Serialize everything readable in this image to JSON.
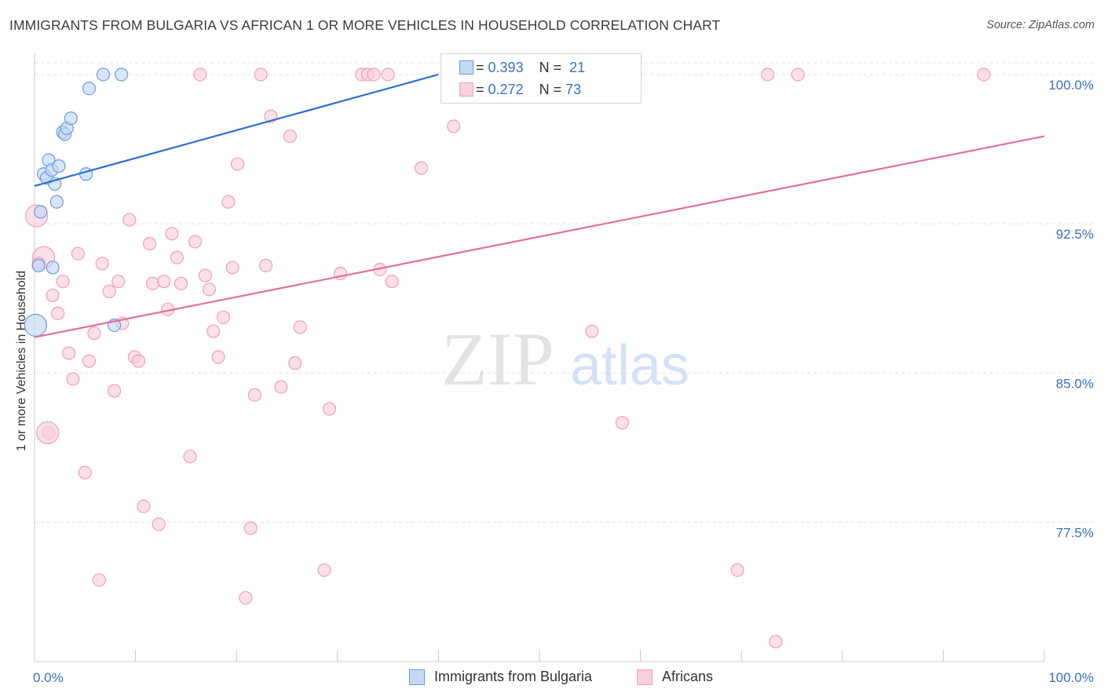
{
  "title": "IMMIGRANTS FROM BULGARIA VS AFRICAN 1 OR MORE VEHICLES IN HOUSEHOLD CORRELATION CHART",
  "source": "Source: ZipAtlas.com",
  "watermark": {
    "zip": "ZIP",
    "atlas": "atlas"
  },
  "legend_stats": [
    {
      "r_label": "R =",
      "r_value": "0.393",
      "n_label": "N =",
      "n_value": "21"
    },
    {
      "r_label": "R =",
      "r_value": "0.272",
      "n_label": "N =",
      "n_value": "73"
    }
  ],
  "chart_data": {
    "type": "scatter",
    "title": "IMMIGRANTS FROM BULGARIA VS AFRICAN 1 OR MORE VEHICLES IN HOUSEHOLD CORRELATION CHART",
    "xlabel": "",
    "ylabel": "1 or more Vehicles in Household",
    "xlim": [
      0,
      100
    ],
    "ylim": [
      70.5,
      101.3
    ],
    "x_tick_labels": [
      "0.0%",
      "100.0%"
    ],
    "y_ticks": [
      77.5,
      85.0,
      92.5,
      100.0
    ],
    "y_tick_labels": [
      "77.5%",
      "85.0%",
      "92.5%",
      "100.0%"
    ],
    "grid": true,
    "legend_position": "bottom",
    "colors": {
      "bulgaria": "#6b9be0",
      "africans": "#f0a0ba",
      "bulgaria_line": "#2e6fcf",
      "africans_line": "#e0709a",
      "axis_tick_text": "#3a6fc4"
    },
    "series": [
      {
        "name": "Immigrants from Bulgaria",
        "points": [
          [
            0.1,
            87.4
          ],
          [
            0.4,
            90.4
          ],
          [
            0.6,
            93.1
          ],
          [
            0.9,
            95.0
          ],
          [
            1.2,
            94.8
          ],
          [
            1.4,
            95.7
          ],
          [
            1.7,
            95.2
          ],
          [
            1.8,
            90.3
          ],
          [
            2.0,
            94.5
          ],
          [
            2.2,
            93.6
          ],
          [
            2.4,
            95.4
          ],
          [
            2.8,
            97.1
          ],
          [
            3.0,
            97.0
          ],
          [
            3.2,
            97.3
          ],
          [
            3.6,
            97.8
          ],
          [
            5.1,
            95.0
          ],
          [
            5.4,
            99.3
          ],
          [
            7.9,
            87.4
          ],
          [
            6.8,
            100.0
          ],
          [
            8.6,
            100.0
          ],
          [
            47.2,
            100.0
          ]
        ],
        "big_points": [
          [
            0.1,
            87.4
          ]
        ],
        "trend": [
          [
            0,
            94.4
          ],
          [
            40,
            100.0
          ]
        ]
      },
      {
        "name": "Africans",
        "points": [
          [
            0.2,
            92.9
          ],
          [
            0.9,
            90.8
          ],
          [
            1.4,
            82.0
          ],
          [
            1.8,
            88.9
          ],
          [
            2.3,
            88.0
          ],
          [
            2.8,
            89.6
          ],
          [
            3.4,
            86.0
          ],
          [
            3.8,
            84.7
          ],
          [
            4.3,
            91.0
          ],
          [
            5.0,
            80.0
          ],
          [
            5.4,
            85.6
          ],
          [
            5.9,
            87.0
          ],
          [
            6.4,
            74.6
          ],
          [
            6.7,
            90.5
          ],
          [
            7.4,
            89.1
          ],
          [
            7.9,
            84.1
          ],
          [
            8.3,
            89.6
          ],
          [
            8.7,
            87.5
          ],
          [
            9.4,
            92.7
          ],
          [
            9.9,
            85.8
          ],
          [
            10.3,
            85.6
          ],
          [
            10.8,
            78.3
          ],
          [
            11.4,
            91.5
          ],
          [
            11.7,
            89.5
          ],
          [
            12.3,
            77.4
          ],
          [
            12.8,
            89.6
          ],
          [
            13.2,
            88.2
          ],
          [
            13.6,
            92.0
          ],
          [
            14.1,
            90.8
          ],
          [
            14.5,
            89.5
          ],
          [
            15.4,
            80.8
          ],
          [
            15.9,
            91.6
          ],
          [
            16.4,
            100.0
          ],
          [
            16.9,
            89.9
          ],
          [
            17.3,
            89.2
          ],
          [
            17.7,
            87.1
          ],
          [
            18.2,
            85.8
          ],
          [
            18.7,
            87.8
          ],
          [
            19.2,
            93.6
          ],
          [
            19.6,
            90.3
          ],
          [
            20.1,
            95.5
          ],
          [
            20.9,
            73.7
          ],
          [
            21.4,
            77.2
          ],
          [
            21.8,
            83.9
          ],
          [
            22.4,
            100.0
          ],
          [
            22.9,
            90.4
          ],
          [
            23.4,
            97.9
          ],
          [
            24.4,
            84.3
          ],
          [
            25.3,
            96.9
          ],
          [
            25.8,
            85.5
          ],
          [
            26.3,
            87.3
          ],
          [
            28.7,
            75.1
          ],
          [
            29.2,
            83.2
          ],
          [
            30.3,
            90.0
          ],
          [
            32.4,
            100.0
          ],
          [
            33.0,
            100.0
          ],
          [
            33.6,
            100.0
          ],
          [
            34.2,
            90.2
          ],
          [
            35.0,
            100.0
          ],
          [
            35.4,
            89.6
          ],
          [
            38.3,
            95.3
          ],
          [
            41.5,
            97.4
          ],
          [
            48.2,
            100.0
          ],
          [
            55.2,
            87.1
          ],
          [
            58.7,
            100.0
          ],
          [
            58.2,
            82.5
          ],
          [
            69.6,
            75.1
          ],
          [
            72.6,
            100.0
          ],
          [
            73.4,
            71.5
          ],
          [
            75.6,
            100.0
          ],
          [
            94.0,
            100.0
          ],
          [
            0.4,
            90.5
          ],
          [
            1.3,
            82.0
          ]
        ],
        "big_points": [
          [
            0.2,
            92.9
          ],
          [
            0.9,
            90.8
          ],
          [
            1.3,
            82.0
          ]
        ],
        "trend": [
          [
            0,
            86.8
          ],
          [
            100,
            96.9
          ]
        ]
      }
    ]
  }
}
